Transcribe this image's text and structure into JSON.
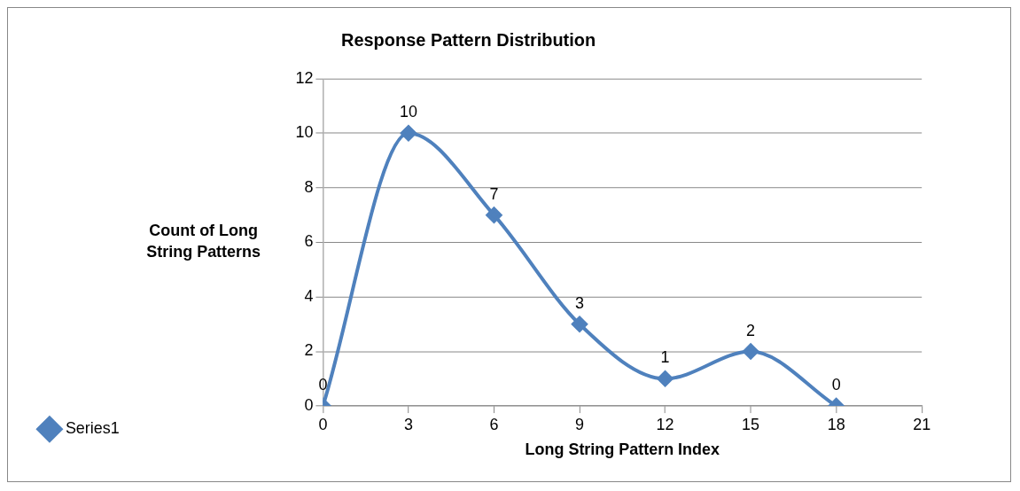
{
  "chart_data": {
    "type": "line",
    "title": "Response Pattern Distribution",
    "xlabel": "Long String Pattern Index",
    "ylabel": "Count of Long String Patterns",
    "x": [
      0,
      3,
      6,
      9,
      12,
      15,
      18
    ],
    "series": [
      {
        "name": "Series1",
        "color": "#4f81bd",
        "values": [
          0,
          10,
          7,
          3,
          1,
          2,
          0
        ]
      }
    ],
    "xlim": [
      0,
      21
    ],
    "xticks": [
      0,
      3,
      6,
      9,
      12,
      15,
      18,
      21
    ],
    "ylim": [
      0,
      12
    ],
    "yticks": [
      0,
      2,
      4,
      6,
      8,
      10,
      12
    ],
    "grid": "y",
    "legend": "bottom left",
    "marker": "diamond",
    "line_style": "solid",
    "data_labels": true
  }
}
